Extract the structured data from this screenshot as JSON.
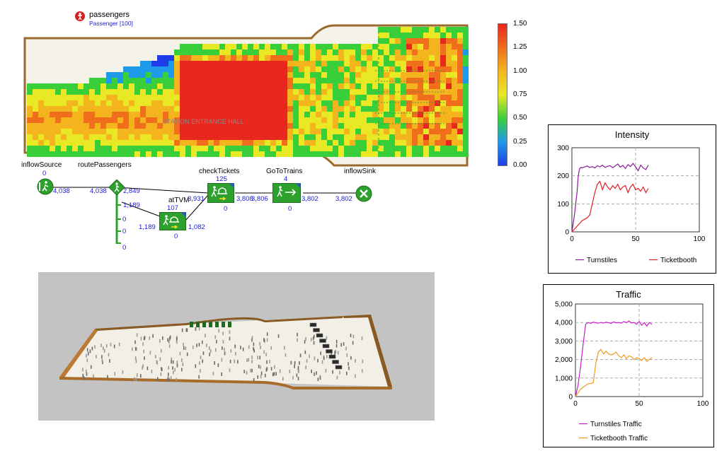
{
  "agent_population": {
    "name": "passengers",
    "type": "Passenger [100]"
  },
  "floor_label": "STATION ENTRANCE HALL",
  "colorscale": {
    "ticks": [
      "1.50",
      "1.25",
      "1.00",
      "0.75",
      "0.50",
      "0.25",
      "0.00"
    ],
    "colors": [
      "#e8271e",
      "#f06e1c",
      "#f4b41d",
      "#e8e825",
      "#38cf3a",
      "#1e9be8",
      "#1e3de8"
    ]
  },
  "flowchart": {
    "blocks": [
      {
        "id": "inflowSource",
        "label": "inflowSource",
        "queue": "0",
        "icon": "source-icon"
      },
      {
        "id": "routePassengers",
        "label": "routePassengers",
        "icon": "select-output-icon"
      },
      {
        "id": "atTVM",
        "label": "atTVM",
        "queue": "107",
        "bottom": "0",
        "icon": "service-icon"
      },
      {
        "id": "checkTickets",
        "label": "checkTickets",
        "queue": "125",
        "bottom": "0",
        "icon": "service-icon"
      },
      {
        "id": "GoToTrains",
        "label": "GoToTrains",
        "queue": "4",
        "bottom": "0",
        "icon": "goto-icon"
      },
      {
        "id": "inflowSink",
        "label": "inflowSink",
        "icon": "sink-icon"
      }
    ],
    "counts": {
      "source_out": "4,038",
      "route_in": "4,038",
      "route_out1": "2,849",
      "route_out2": "1,189",
      "route_out3": "0",
      "route_out4": "0",
      "route_out5": "0",
      "tvm_in": "1,189",
      "tvm_out": "1,082",
      "check_in": "3,931",
      "check_out": "3,808",
      "goto_in": "3,806",
      "goto_out": "3,802",
      "sink_in": "3,802"
    }
  },
  "charts": [
    {
      "id": "intensity",
      "title": "Intensity",
      "chart_data": {
        "type": "line",
        "title": "Intensity",
        "xlim": [
          0,
          100
        ],
        "ylim": [
          0,
          300
        ],
        "xticks": [
          "0",
          "50",
          "100"
        ],
        "yticks": [
          "0",
          "100",
          "200",
          "300"
        ],
        "grid": true,
        "legend": "bottom",
        "series": [
          {
            "name": "Turnstiles",
            "color": "#8b1a9a",
            "x": [
              0,
              2,
              4,
              5,
              6,
              7,
              8,
              10,
              12,
              14,
              16,
              18,
              20,
              22,
              24,
              26,
              28,
              30,
              32,
              34,
              36,
              38,
              40,
              42,
              44,
              46,
              48,
              50,
              52,
              54,
              56,
              58,
              60
            ],
            "y": [
              0,
              60,
              140,
              200,
              225,
              230,
              228,
              232,
              235,
              230,
              233,
              228,
              236,
              232,
              238,
              230,
              234,
              236,
              229,
              235,
              242,
              231,
              237,
              226,
              240,
              233,
              244,
              232,
              218,
              238,
              228,
              222,
              238
            ]
          },
          {
            "name": "Ticketbooth",
            "color": "#e02020",
            "x": [
              0,
              2,
              4,
              6,
              8,
              10,
              12,
              14,
              16,
              18,
              20,
              22,
              24,
              26,
              28,
              30,
              32,
              34,
              36,
              38,
              40,
              42,
              44,
              46,
              48,
              50,
              52,
              54,
              56,
              58,
              60
            ],
            "y": [
              0,
              10,
              20,
              30,
              40,
              45,
              50,
              60,
              100,
              140,
              170,
              180,
              150,
              175,
              160,
              150,
              165,
              155,
              170,
              150,
              160,
              165,
              140,
              160,
              170,
              150,
              155,
              145,
              160,
              140,
              155
            ]
          }
        ]
      }
    },
    {
      "id": "traffic",
      "title": "Traffic",
      "chart_data": {
        "type": "line",
        "title": "Traffic",
        "xlim": [
          0,
          100
        ],
        "ylim": [
          0,
          5000
        ],
        "xticks": [
          "0",
          "50",
          "100"
        ],
        "yticks": [
          "0",
          "1,000",
          "2,000",
          "3,000",
          "4,000",
          "5,000"
        ],
        "grid": true,
        "legend": "bottom",
        "series": [
          {
            "name": "Turnstiles Traffic",
            "color": "#c81ec8",
            "x": [
              0,
              2,
              4,
              6,
              8,
              10,
              12,
              14,
              16,
              18,
              20,
              22,
              24,
              26,
              28,
              30,
              32,
              34,
              36,
              38,
              40,
              42,
              44,
              46,
              48,
              50,
              52,
              54,
              56,
              58,
              60
            ],
            "y": [
              0,
              600,
              1600,
              2800,
              3900,
              4000,
              3950,
              4020,
              3980,
              3960,
              4000,
              3970,
              4010,
              3990,
              3950,
              4030,
              3980,
              4000,
              3960,
              4050,
              3990,
              4080,
              3970,
              4000,
              3900,
              4050,
              3850,
              3990,
              3800,
              4000,
              3900
            ]
          },
          {
            "name": "Ticketbooth Traffic",
            "color": "#f09a1e",
            "x": [
              0,
              2,
              4,
              6,
              8,
              10,
              12,
              14,
              16,
              18,
              20,
              22,
              24,
              26,
              28,
              30,
              32,
              34,
              36,
              38,
              40,
              42,
              44,
              46,
              48,
              50,
              52,
              54,
              56,
              58,
              60
            ],
            "y": [
              0,
              200,
              400,
              500,
              600,
              700,
              700,
              750,
              1800,
              2400,
              2550,
              2300,
              2450,
              2300,
              2250,
              2300,
              2400,
              2200,
              2100,
              2250,
              2050,
              2200,
              2150,
              2000,
              2100,
              2050,
              1950,
              2100,
              1900,
              2000,
              2100
            ]
          }
        ]
      }
    }
  ]
}
